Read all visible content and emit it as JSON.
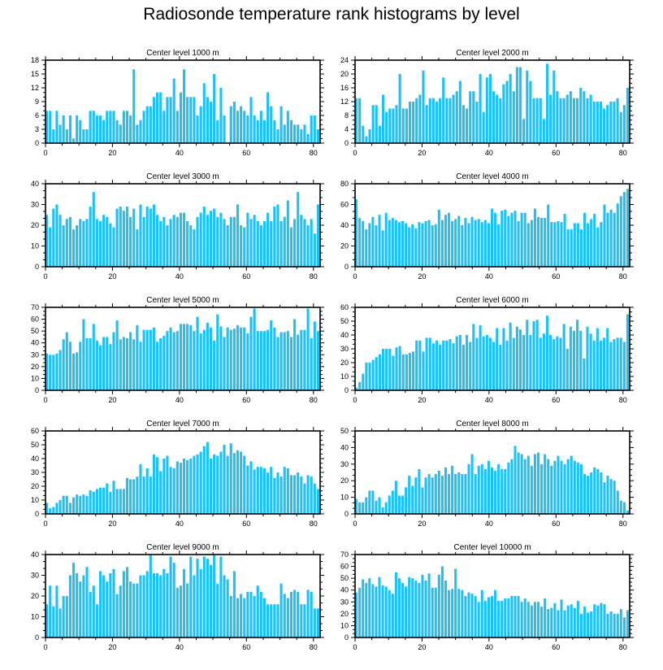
{
  "title": "Radiosonde temperature rank histograms by level",
  "style": {
    "bar_color": "#1ec0f5",
    "frame_color": "#000000",
    "background": "#ffffff"
  },
  "chart_data": [
    {
      "type": "bar",
      "title": "Center level 1000 m",
      "xlim": [
        0,
        82
      ],
      "xticks": [
        0,
        20,
        40,
        60,
        80
      ],
      "ylim": [
        0,
        18
      ],
      "yticks": [
        0,
        3,
        6,
        9,
        12,
        15,
        18
      ],
      "values": [
        7,
        7,
        3,
        7,
        4,
        6,
        3,
        6,
        1,
        6,
        5,
        3,
        3,
        7,
        7,
        6,
        6,
        5,
        7,
        7,
        7,
        5,
        4,
        7,
        7,
        6,
        16,
        4,
        5,
        7,
        8,
        8,
        10,
        11,
        11,
        7,
        10,
        10,
        14,
        7,
        11,
        16,
        10,
        10,
        10,
        6,
        8,
        13,
        10,
        9,
        15,
        5,
        12,
        6,
        0,
        8,
        9,
        7,
        8,
        7,
        6,
        10,
        6,
        5,
        7,
        5,
        11,
        8,
        5,
        3,
        8,
        4,
        7,
        5,
        4,
        4,
        3,
        4,
        2,
        6,
        6,
        3
      ]
    },
    {
      "type": "bar",
      "title": "Center level 2000 m",
      "xlim": [
        0,
        82
      ],
      "xticks": [
        0,
        20,
        40,
        60,
        80
      ],
      "ylim": [
        0,
        24
      ],
      "yticks": [
        0,
        4,
        8,
        12,
        16,
        20,
        24
      ],
      "values": [
        13,
        13,
        5,
        2,
        4,
        11,
        11,
        5,
        14,
        9,
        10,
        10,
        11,
        20,
        10,
        10,
        12,
        12,
        13,
        14,
        21,
        11,
        13,
        13,
        12,
        13,
        19,
        13,
        13,
        14,
        15,
        18,
        11,
        10,
        15,
        15,
        12,
        20,
        9,
        19,
        20,
        15,
        14,
        13,
        17,
        18,
        20,
        15,
        22,
        22,
        7,
        21,
        18,
        13,
        13,
        13,
        7,
        23,
        14,
        21,
        15,
        13,
        13,
        14,
        15,
        13,
        13,
        16,
        15,
        13,
        14,
        12,
        12,
        12,
        10,
        11,
        12,
        12,
        13,
        9,
        11,
        16
      ]
    },
    {
      "type": "bar",
      "title": "Center level 3000 m",
      "xlim": [
        0,
        82
      ],
      "xticks": [
        0,
        20,
        40,
        60,
        80
      ],
      "ylim": [
        0,
        40
      ],
      "yticks": [
        0,
        10,
        20,
        30,
        40
      ],
      "values": [
        25,
        19,
        28,
        30,
        25,
        20,
        23,
        24,
        18,
        20,
        23,
        22,
        23,
        29,
        36,
        23,
        22,
        25,
        24,
        21,
        19,
        28,
        29,
        27,
        29,
        24,
        28,
        18,
        30,
        24,
        29,
        28,
        30,
        25,
        22,
        24,
        20,
        23,
        25,
        24,
        26,
        26,
        22,
        20,
        18,
        24,
        26,
        29,
        25,
        27,
        28,
        24,
        26,
        23,
        20,
        24,
        24,
        30,
        20,
        19,
        26,
        23,
        25,
        22,
        20,
        22,
        26,
        22,
        29,
        30,
        22,
        24,
        32,
        19,
        23,
        36,
        25,
        23,
        20,
        23,
        16,
        30
      ]
    },
    {
      "type": "bar",
      "title": "Center level 4000 m",
      "xlim": [
        0,
        82
      ],
      "xticks": [
        0,
        20,
        40,
        60,
        80
      ],
      "ylim": [
        0,
        80
      ],
      "yticks": [
        0,
        20,
        40,
        60,
        80
      ],
      "values": [
        65,
        47,
        44,
        36,
        42,
        48,
        40,
        50,
        35,
        52,
        45,
        47,
        45,
        43,
        44,
        42,
        38,
        41,
        37,
        43,
        42,
        44,
        45,
        40,
        41,
        55,
        45,
        50,
        52,
        44,
        46,
        49,
        40,
        47,
        42,
        48,
        45,
        46,
        43,
        45,
        42,
        56,
        52,
        41,
        54,
        55,
        49,
        52,
        54,
        44,
        52,
        52,
        42,
        45,
        56,
        48,
        47,
        47,
        60,
        43,
        43,
        44,
        43,
        51,
        36,
        36,
        42,
        42,
        36,
        52,
        42,
        46,
        51,
        38,
        43,
        60,
        52,
        55,
        52,
        61,
        68,
        72,
        75
      ]
    },
    {
      "type": "bar",
      "title": "Center level 5000 m",
      "xlim": [
        0,
        82
      ],
      "xticks": [
        0,
        20,
        40,
        60,
        80
      ],
      "ylim": [
        0,
        70
      ],
      "yticks": [
        0,
        10,
        20,
        30,
        40,
        50,
        60,
        70
      ],
      "values": [
        31,
        30,
        30,
        31,
        34,
        43,
        49,
        41,
        31,
        32,
        41,
        60,
        44,
        44,
        56,
        42,
        38,
        45,
        45,
        39,
        49,
        59,
        43,
        45,
        44,
        49,
        43,
        55,
        41,
        51,
        51,
        51,
        53,
        41,
        44,
        46,
        50,
        53,
        49,
        50,
        56,
        56,
        56,
        55,
        50,
        62,
        48,
        51,
        57,
        53,
        42,
        64,
        54,
        45,
        53,
        51,
        52,
        55,
        53,
        53,
        48,
        62,
        69,
        50,
        50,
        50,
        51,
        59,
        53,
        45,
        49,
        49,
        50,
        45,
        60,
        47,
        51,
        51,
        69,
        44,
        58,
        50
      ]
    },
    {
      "type": "bar",
      "title": "Center level 6000 m",
      "xlim": [
        0,
        82
      ],
      "xticks": [
        0,
        20,
        40,
        60,
        80
      ],
      "ylim": [
        0,
        60
      ],
      "yticks": [
        0,
        10,
        20,
        30,
        40,
        50,
        60
      ],
      "values": [
        2,
        6,
        12,
        20,
        20,
        22,
        24,
        26,
        30,
        30,
        30,
        25,
        31,
        32,
        26,
        26,
        27,
        28,
        36,
        36,
        28,
        38,
        38,
        34,
        36,
        33,
        36,
        36,
        37,
        34,
        39,
        40,
        33,
        40,
        35,
        48,
        38,
        47,
        39,
        40,
        38,
        35,
        45,
        33,
        45,
        36,
        49,
        38,
        46,
        44,
        40,
        51,
        40,
        50,
        51,
        38,
        41,
        54,
        40,
        37,
        39,
        38,
        48,
        30,
        46,
        43,
        51,
        43,
        23,
        46,
        41,
        36,
        45,
        36,
        38,
        45,
        35,
        37,
        38,
        38,
        35,
        55
      ]
    },
    {
      "type": "bar",
      "title": "Center level 7000 m",
      "xlim": [
        0,
        82
      ],
      "xticks": [
        0,
        20,
        40,
        60,
        80
      ],
      "ylim": [
        0,
        60
      ],
      "yticks": [
        0,
        10,
        20,
        30,
        40,
        50,
        60
      ],
      "values": [
        8,
        4,
        5,
        8,
        10,
        13,
        13,
        8,
        12,
        14,
        13,
        14,
        13,
        17,
        16,
        18,
        19,
        19,
        22,
        16,
        24,
        18,
        18,
        18,
        26,
        25,
        25,
        27,
        36,
        27,
        33,
        27,
        43,
        41,
        31,
        40,
        42,
        34,
        33,
        38,
        37,
        40,
        39,
        40,
        42,
        43,
        45,
        49,
        52,
        40,
        43,
        42,
        45,
        50,
        42,
        51,
        44,
        46,
        45,
        42,
        35,
        38,
        32,
        34,
        34,
        33,
        30,
        34,
        26,
        30,
        27,
        34,
        33,
        28,
        28,
        30,
        27,
        22,
        28,
        27,
        22,
        18
      ]
    },
    {
      "type": "bar",
      "title": "Center level 8000 m",
      "xlim": [
        0,
        82
      ],
      "xticks": [
        0,
        20,
        40,
        60,
        80
      ],
      "ylim": [
        0,
        50
      ],
      "yticks": [
        0,
        10,
        20,
        30,
        40,
        50
      ],
      "values": [
        9,
        7,
        7,
        10,
        14,
        14,
        8,
        10,
        4,
        7,
        11,
        14,
        20,
        11,
        11,
        16,
        23,
        17,
        22,
        27,
        16,
        22,
        24,
        22,
        24,
        26,
        23,
        28,
        24,
        29,
        24,
        25,
        24,
        24,
        30,
        36,
        24,
        29,
        30,
        27,
        32,
        28,
        26,
        30,
        27,
        27,
        31,
        33,
        41,
        37,
        36,
        33,
        35,
        29,
        36,
        37,
        30,
        36,
        33,
        29,
        32,
        35,
        32,
        30,
        33,
        35,
        32,
        31,
        30,
        24,
        23,
        25,
        28,
        27,
        25,
        19,
        23,
        21,
        20,
        14,
        8,
        7,
        2
      ]
    },
    {
      "type": "bar",
      "title": "Center level 9000 m",
      "xlim": [
        0,
        82
      ],
      "xticks": [
        0,
        20,
        40,
        60,
        80
      ],
      "ylim": [
        0,
        40
      ],
      "yticks": [
        0,
        10,
        20,
        30,
        40
      ],
      "values": [
        16,
        25,
        15,
        25,
        14,
        20,
        20,
        30,
        36,
        31,
        27,
        30,
        34,
        22,
        25,
        16,
        32,
        30,
        27,
        31,
        33,
        21,
        25,
        32,
        34,
        27,
        26,
        26,
        30,
        30,
        32,
        40,
        31,
        31,
        30,
        33,
        31,
        39,
        36,
        24,
        25,
        33,
        26,
        39,
        30,
        38,
        33,
        39,
        38,
        35,
        40,
        26,
        39,
        30,
        28,
        20,
        32,
        19,
        21,
        19,
        22,
        22,
        20,
        25,
        22,
        19,
        16,
        16,
        16,
        16,
        26,
        21,
        19,
        22,
        23,
        22,
        16,
        16,
        23,
        22,
        14,
        14
      ]
    },
    {
      "type": "bar",
      "title": "Center level 10000 m",
      "xlim": [
        0,
        82
      ],
      "xticks": [
        0,
        20,
        40,
        60,
        80
      ],
      "ylim": [
        0,
        70
      ],
      "yticks": [
        0,
        10,
        20,
        30,
        40,
        50,
        60,
        70
      ],
      "values": [
        38,
        42,
        49,
        46,
        50,
        45,
        43,
        51,
        44,
        43,
        40,
        37,
        55,
        50,
        46,
        43,
        51,
        50,
        48,
        46,
        53,
        48,
        54,
        42,
        42,
        53,
        60,
        48,
        40,
        41,
        58,
        41,
        40,
        35,
        38,
        37,
        35,
        30,
        40,
        31,
        34,
        35,
        40,
        31,
        31,
        33,
        33,
        35,
        35,
        35,
        30,
        33,
        30,
        27,
        30,
        30,
        26,
        33,
        24,
        25,
        29,
        23,
        32,
        23,
        27,
        28,
        25,
        31,
        20,
        26,
        21,
        22,
        28,
        27,
        29,
        28,
        20,
        22,
        20,
        20,
        24,
        17,
        23
      ]
    }
  ]
}
